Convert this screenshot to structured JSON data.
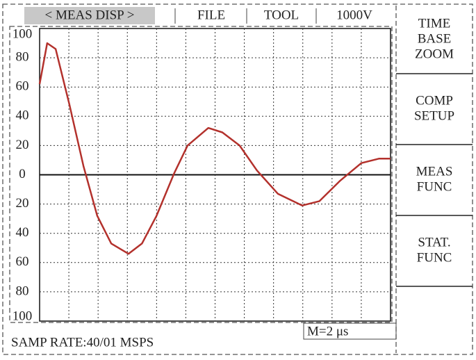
{
  "menu": {
    "items": [
      "< MEAS DISP >",
      "FILE",
      "TOOL",
      "1000V"
    ]
  },
  "side_buttons": [
    [
      "TIME",
      "BASE",
      "ZOOM"
    ],
    [
      "COMP",
      "SETUP"
    ],
    [
      "MEAS",
      "FUNC"
    ],
    [
      "STAT.",
      "FUNC"
    ]
  ],
  "status": {
    "sample_rate": "SAMP RATE:40/01 MSPS",
    "timebase": "M=2 μs"
  },
  "chart_data": {
    "type": "line",
    "x": [
      0,
      0.26,
      0.55,
      1.02,
      1.5,
      1.97,
      2.45,
      3.04,
      3.5,
      4.0,
      4.6,
      5.06,
      5.77,
      6.25,
      6.84,
      7.43,
      8.15,
      8.98,
      9.57,
      10.28,
      11.0,
      11.6,
      12
    ],
    "series": [
      {
        "color": "#b3312c",
        "values": [
          62,
          90,
          86,
          48,
          6,
          -28,
          -47,
          -54,
          -47,
          -28,
          1,
          20,
          32,
          29,
          20,
          3,
          -13,
          -21,
          -18,
          -4,
          8,
          11,
          11
        ]
      }
    ],
    "xlim": [
      0,
      12
    ],
    "ylim": [
      -100,
      100
    ],
    "yticks": [
      {
        "value": -100,
        "label": "100"
      },
      {
        "value": -80,
        "label": "80"
      },
      {
        "value": -60,
        "label": "60"
      },
      {
        "value": -40,
        "label": "40"
      },
      {
        "value": -20,
        "label": "20"
      },
      0,
      20,
      40,
      60,
      80,
      100
    ],
    "grid": true
  }
}
